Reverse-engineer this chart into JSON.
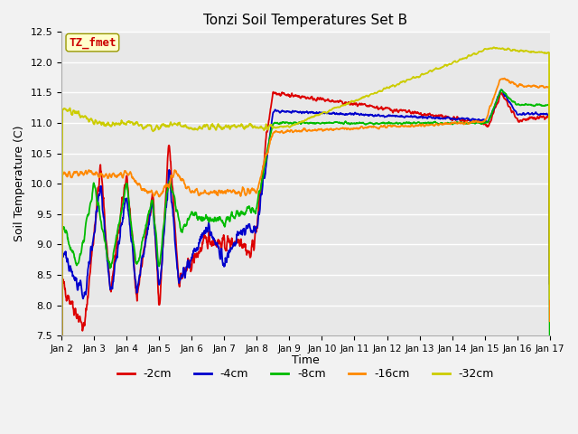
{
  "title": "Tonzi Soil Temperatures Set B",
  "xlabel": "Time",
  "ylabel": "Soil Temperature (C)",
  "ylim": [
    7.5,
    12.5
  ],
  "annotation": "TZ_fmet",
  "annotation_color": "#cc0000",
  "annotation_bg": "#ffffcc",
  "bg_color": "#e8e8e8",
  "grid_color": "#ffffff",
  "legend_entries": [
    "-2cm",
    "-4cm",
    "-8cm",
    "-16cm",
    "-32cm"
  ],
  "line_colors": [
    "#dd0000",
    "#0000cc",
    "#00bb00",
    "#ff8800",
    "#cccc00"
  ],
  "x_tick_labels": [
    "Jan 2",
    "Jan 3",
    "Jan 4",
    "Jan 5",
    "Jan 6",
    "Jan 7",
    "Jan 8",
    "Jan 9",
    "Jan 10",
    "Jan 11",
    "Jan 12",
    "Jan 13",
    "Jan 14",
    "Jan 15",
    "Jan 16",
    "Jan 17"
  ],
  "figsize": [
    6.4,
    4.8
  ],
  "dpi": 100
}
